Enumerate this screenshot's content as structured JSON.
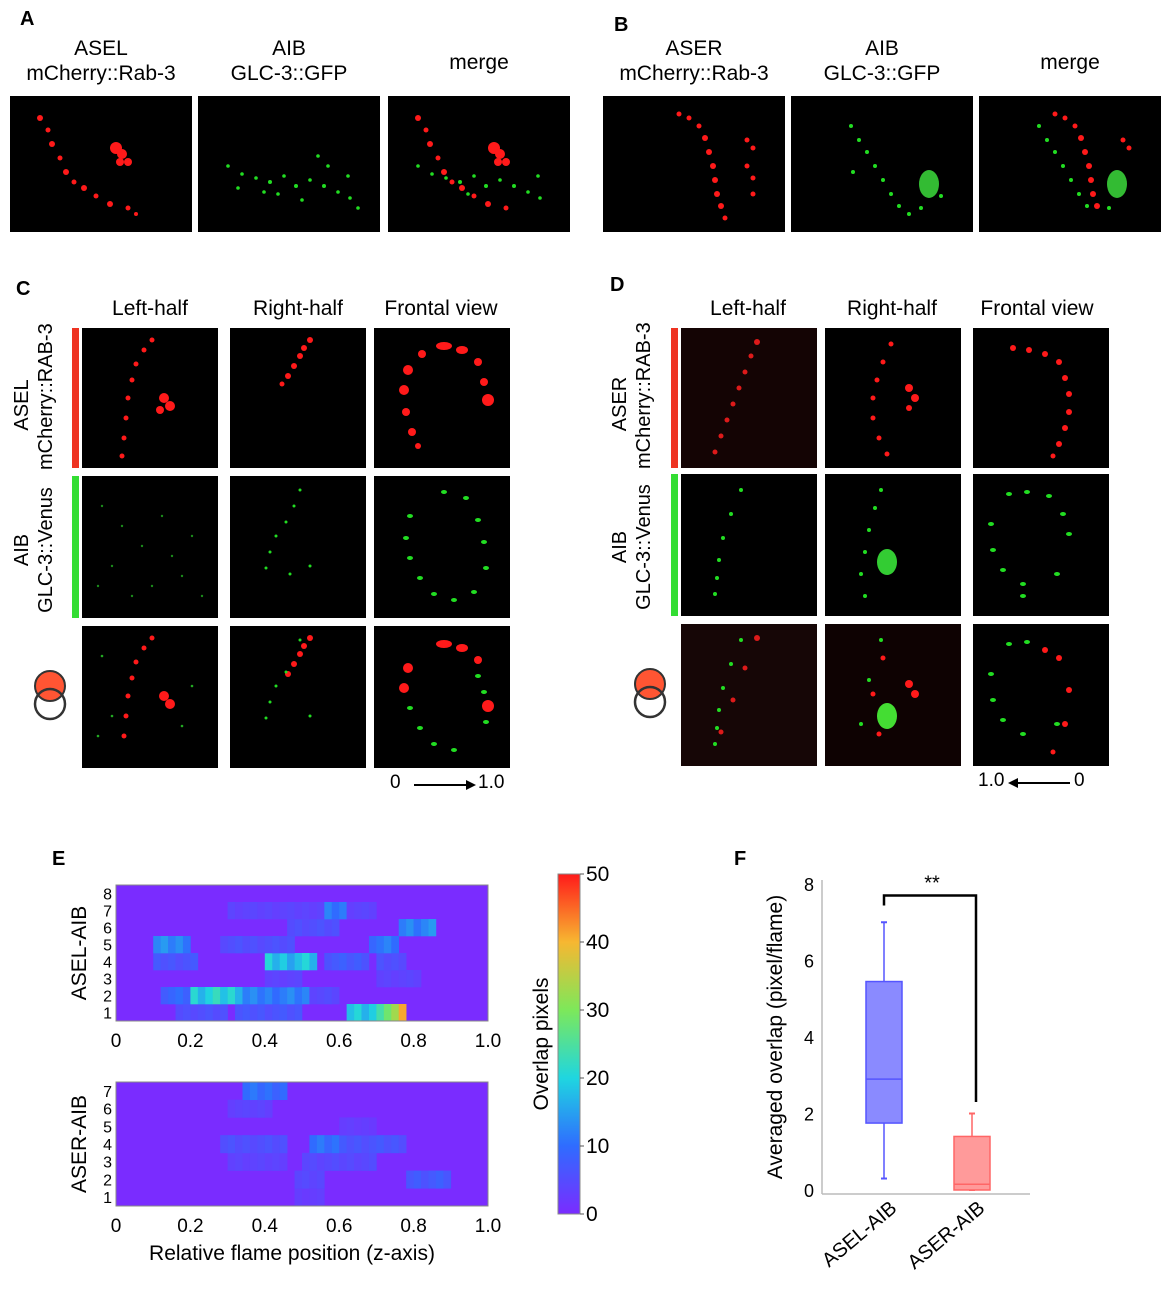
{
  "panels": {
    "A": {
      "letter": "A",
      "columns": [
        {
          "line1": "ASEL",
          "line2": "mCherry::Rab-3"
        },
        {
          "line1": "AIB",
          "line2": "GLC-3::GFP"
        },
        {
          "line1": "merge",
          "line2": ""
        }
      ]
    },
    "B": {
      "letter": "B",
      "columns": [
        {
          "line1": "ASER",
          "line2": "mCherry::Rab-3"
        },
        {
          "line1": "AIB",
          "line2": "GLC-3::GFP"
        },
        {
          "line1": "merge",
          "line2": ""
        }
      ]
    },
    "C": {
      "letter": "C",
      "columns": [
        "Left-half",
        "Right-half",
        "Frontal view"
      ],
      "row_red": {
        "line1": "ASEL",
        "line2": "mCherry::RAB-3"
      },
      "row_green": {
        "line1": "AIB",
        "line2": "GLC-3::Venus"
      },
      "scale": {
        "start": "0",
        "end": "1.0"
      }
    },
    "D": {
      "letter": "D",
      "columns": [
        "Left-half",
        "Right-half",
        "Frontal view"
      ],
      "row_red": {
        "line1": "ASER",
        "line2": "mCherry::RAB-3"
      },
      "row_green": {
        "line1": "AIB",
        "line2": "GLC-3::Venus"
      },
      "scale": {
        "start": "1.0",
        "end": "0"
      }
    },
    "E": {
      "letter": "E"
    },
    "F": {
      "letter": "F"
    }
  },
  "colors": {
    "red_signal": "#ff1a1a",
    "green_signal": "#22dd22",
    "red_bar": "#ee3322",
    "green_bar": "#33dd33"
  },
  "chart_data": [
    {
      "type": "heatmap",
      "name": "ASEL-AIB",
      "ylabel": "ASEL-AIB",
      "rows": [
        "1",
        "2",
        "3",
        "4",
        "5",
        "6",
        "7",
        "8"
      ],
      "x_ticks": [
        "0",
        "0.2",
        "0.4",
        "0.6",
        "0.8",
        "1.0"
      ],
      "xlim": [
        0,
        1.0
      ],
      "bins": 50,
      "segments": [
        {
          "row": 1,
          "x0": 0.16,
          "x1": 0.3,
          "v": 6
        },
        {
          "row": 1,
          "x0": 0.32,
          "x1": 0.5,
          "v": 7
        },
        {
          "row": 1,
          "x0": 0.62,
          "x1": 0.78,
          "v": 20
        },
        {
          "row": 1,
          "x0": 0.7,
          "x1": 0.75,
          "v": 32
        },
        {
          "row": 1,
          "x0": 0.76,
          "x1": 0.78,
          "v": 50
        },
        {
          "row": 2,
          "x0": 0.12,
          "x1": 0.2,
          "v": 10
        },
        {
          "row": 2,
          "x0": 0.2,
          "x1": 0.34,
          "v": 22
        },
        {
          "row": 2,
          "x0": 0.34,
          "x1": 0.52,
          "v": 13
        },
        {
          "row": 2,
          "x0": 0.52,
          "x1": 0.6,
          "v": 5
        },
        {
          "row": 3,
          "x0": 0.4,
          "x1": 0.5,
          "v": 4
        },
        {
          "row": 3,
          "x0": 0.7,
          "x1": 0.82,
          "v": 4
        },
        {
          "row": 4,
          "x0": 0.1,
          "x1": 0.22,
          "v": 7
        },
        {
          "row": 4,
          "x0": 0.4,
          "x1": 0.53,
          "v": 20
        },
        {
          "row": 4,
          "x0": 0.55,
          "x1": 0.68,
          "v": 8
        },
        {
          "row": 4,
          "x0": 0.7,
          "x1": 0.78,
          "v": 6
        },
        {
          "row": 5,
          "x0": 0.1,
          "x1": 0.2,
          "v": 14
        },
        {
          "row": 5,
          "x0": 0.28,
          "x1": 0.48,
          "v": 6
        },
        {
          "row": 5,
          "x0": 0.68,
          "x1": 0.75,
          "v": 12
        },
        {
          "row": 6,
          "x0": 0.45,
          "x1": 0.6,
          "v": 6
        },
        {
          "row": 6,
          "x0": 0.76,
          "x1": 0.85,
          "v": 14
        },
        {
          "row": 7,
          "x0": 0.3,
          "x1": 0.7,
          "v": 4
        },
        {
          "row": 7,
          "x0": 0.56,
          "x1": 0.62,
          "v": 12
        }
      ],
      "colorbar": {
        "label": "Overlap pixels",
        "ticks": [
          "0",
          "10",
          "20",
          "30",
          "40",
          "50"
        ],
        "range": [
          0,
          50
        ]
      }
    },
    {
      "type": "heatmap",
      "name": "ASER-AIB",
      "ylabel": "ASER-AIB",
      "xlabel": "Relative flame position (z-axis)",
      "rows": [
        "1",
        "2",
        "3",
        "4",
        "5",
        "6",
        "7"
      ],
      "x_ticks": [
        "0",
        "0.2",
        "0.4",
        "0.6",
        "0.8",
        "1.0"
      ],
      "xlim": [
        0,
        1.0
      ],
      "bins": 50,
      "segments": [
        {
          "row": 1,
          "x0": 0.47,
          "x1": 0.55,
          "v": 3
        },
        {
          "row": 2,
          "x0": 0.47,
          "x1": 0.55,
          "v": 5
        },
        {
          "row": 2,
          "x0": 0.78,
          "x1": 0.9,
          "v": 8
        },
        {
          "row": 3,
          "x0": 0.3,
          "x1": 0.45,
          "v": 4
        },
        {
          "row": 3,
          "x0": 0.5,
          "x1": 0.7,
          "v": 5
        },
        {
          "row": 4,
          "x0": 0.28,
          "x1": 0.45,
          "v": 6
        },
        {
          "row": 4,
          "x0": 0.52,
          "x1": 0.6,
          "v": 12
        },
        {
          "row": 4,
          "x0": 0.6,
          "x1": 0.78,
          "v": 7
        },
        {
          "row": 5,
          "x0": 0.6,
          "x1": 0.7,
          "v": 3
        },
        {
          "row": 6,
          "x0": 0.3,
          "x1": 0.42,
          "v": 4
        },
        {
          "row": 7,
          "x0": 0.33,
          "x1": 0.45,
          "v": 11
        }
      ]
    },
    {
      "type": "box",
      "ylabel": "Averaged overlap (pixel/flame)",
      "ylim": [
        0,
        8
      ],
      "y_ticks": [
        "0",
        "2",
        "4",
        "6",
        "8"
      ],
      "significance": "**",
      "series": [
        {
          "name": "ASEL-AIB",
          "min": 0.3,
          "q1": 1.75,
          "median": 2.9,
          "q3": 5.45,
          "max": 7.0,
          "color": "#5555ff"
        },
        {
          "name": "ASER-AIB",
          "min": 0.0,
          "q1": 0.0,
          "median": 0.15,
          "q3": 1.4,
          "max": 2.0,
          "color": "#ff6666"
        }
      ]
    }
  ]
}
